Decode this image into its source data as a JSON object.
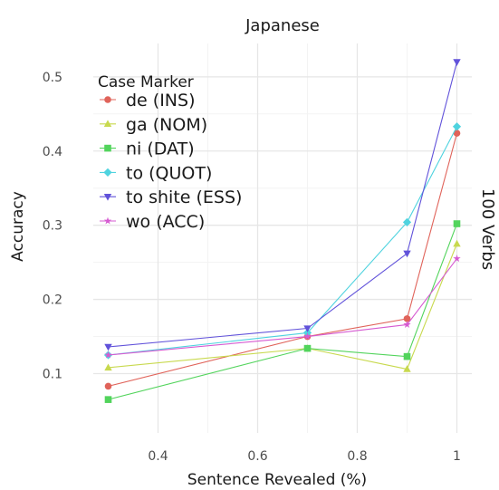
{
  "chart_data": {
    "type": "line",
    "title": "Japanese",
    "facet_label": "100 Verbs",
    "xlabel": "Sentence Revealed (%)",
    "ylabel": "Accuracy",
    "xlim": [
      0.27,
      1.03
    ],
    "ylim": [
      0.02,
      0.545
    ],
    "x_ticks": [
      0.4,
      0.6,
      0.8,
      1.0
    ],
    "x_tick_labels": [
      "0.4",
      "0.6",
      "0.8",
      "1"
    ],
    "y_ticks": [
      0.1,
      0.2,
      0.3,
      0.4,
      0.5
    ],
    "y_tick_labels": [
      "0.1",
      "0.2",
      "0.3",
      "0.4",
      "0.5"
    ],
    "grid": true,
    "legend": {
      "title": "Case Marker",
      "placement": "top-left inside"
    },
    "x": [
      0.3,
      0.7,
      0.9,
      1.0
    ],
    "series": [
      {
        "name": "de (INS)",
        "color": "#E0635A",
        "marker": "circle",
        "values": [
          0.083,
          0.15,
          0.174,
          0.424
        ]
      },
      {
        "name": "ga (NOM)",
        "color": "#C8D94E",
        "marker": "triangle-up",
        "values": [
          0.108,
          0.134,
          0.106,
          0.275
        ]
      },
      {
        "name": "ni (DAT)",
        "color": "#52D45C",
        "marker": "square",
        "values": [
          0.065,
          0.134,
          0.123,
          0.302
        ]
      },
      {
        "name": "to (QUOT)",
        "color": "#4FD3DF",
        "marker": "diamond",
        "values": [
          0.125,
          0.155,
          0.304,
          0.433
        ]
      },
      {
        "name": "to shite (ESS)",
        "color": "#6152DA",
        "marker": "triangle-down",
        "values": [
          0.136,
          0.161,
          0.262,
          0.52
        ]
      },
      {
        "name": "wo (ACC)",
        "color": "#D65AD1",
        "marker": "star",
        "values": [
          0.125,
          0.15,
          0.166,
          0.255
        ]
      }
    ]
  }
}
